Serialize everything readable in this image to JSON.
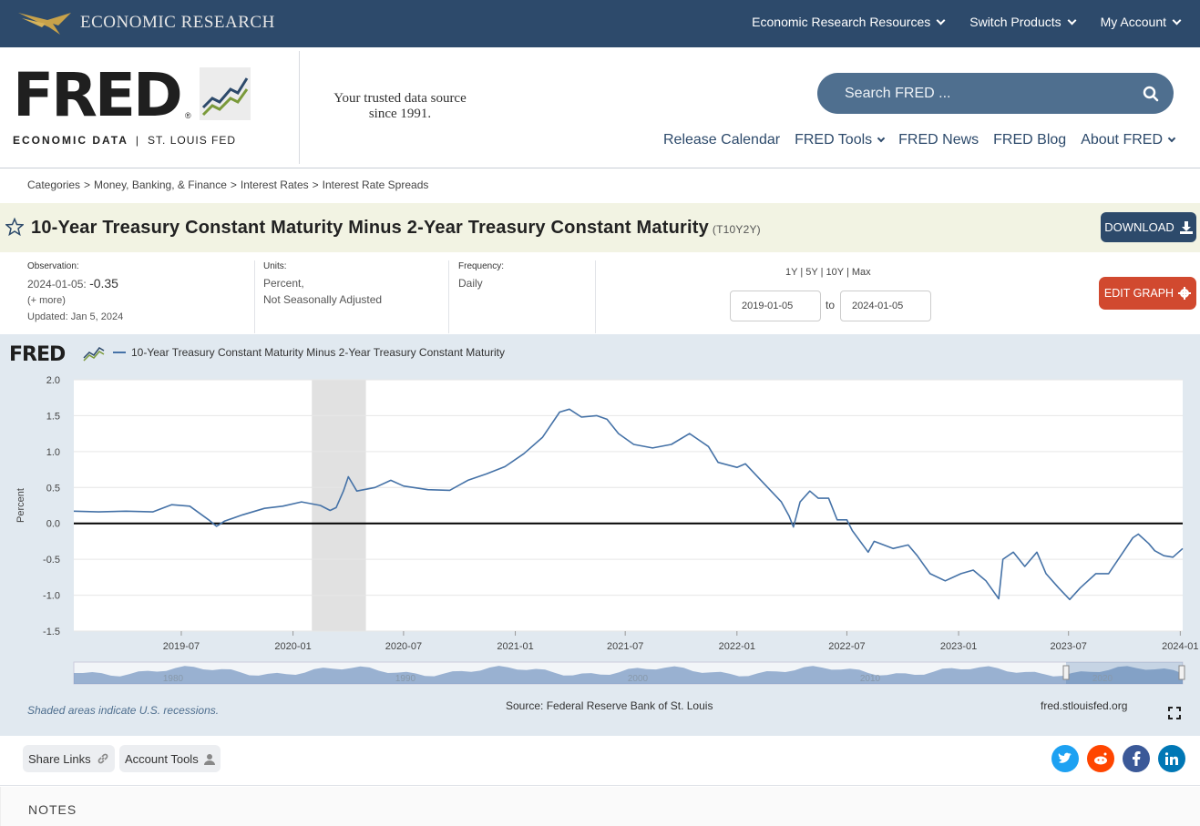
{
  "topbar": {
    "brand": "ECONOMIC RESEARCH",
    "nav": [
      "Economic Research Resources",
      "Switch Products",
      "My Account"
    ]
  },
  "header": {
    "logo": "FRED",
    "logo_sub_1": "ECONOMIC DATA",
    "logo_sub_sep": "|",
    "logo_sub_2": "ST. LOUIS FED",
    "tagline": "Your trusted data source since 1991.",
    "search_placeholder": "Search FRED ...",
    "nav": [
      {
        "label": "Release Calendar",
        "dropdown": false
      },
      {
        "label": "FRED Tools",
        "dropdown": true
      },
      {
        "label": "FRED News",
        "dropdown": false
      },
      {
        "label": "FRED Blog",
        "dropdown": false
      },
      {
        "label": "About FRED",
        "dropdown": true
      }
    ]
  },
  "breadcrumb": [
    "Categories",
    "Money, Banking, & Finance",
    "Interest Rates",
    "Interest Rate Spreads"
  ],
  "series": {
    "title": "10-Year Treasury Constant Maturity Minus 2-Year Treasury Constant Maturity",
    "id": "(T10Y2Y)",
    "download_label": "DOWNLOAD"
  },
  "meta": {
    "observation_label": "Observation:",
    "observation_date": "2024-01-05:",
    "observation_value": "-0.35",
    "more": "(+ more)",
    "updated": "Updated: Jan 5, 2024",
    "units_label": "Units:",
    "units_1": "Percent,",
    "units_2": "Not Seasonally Adjusted",
    "frequency_label": "Frequency:",
    "frequency": "Daily"
  },
  "range": {
    "options": [
      "1Y",
      "5Y",
      "10Y",
      "Max"
    ],
    "separator": "|",
    "start": "2019-01-05",
    "end": "2024-01-05",
    "to_label": "to",
    "edit_label": "EDIT GRAPH"
  },
  "chart_data": {
    "type": "line",
    "legend": "10-Year Treasury Constant Maturity Minus 2-Year Treasury Constant Maturity",
    "ylabel": "Percent",
    "ylim": [
      -1.5,
      2.0
    ],
    "yticks": [
      "2.0",
      "1.5",
      "1.0",
      "0.5",
      "0.0",
      "-0.5",
      "-1.0",
      "-1.5"
    ],
    "xticks": [
      "2019-07",
      "2020-01",
      "2020-07",
      "2021-01",
      "2021-07",
      "2022-01",
      "2022-07",
      "2023-01",
      "2023-07",
      "2024-01"
    ],
    "xlim": [
      "2019-01-05",
      "2024-01-05"
    ],
    "recession": [
      "2020-02-01",
      "2020-04-30"
    ],
    "series_color": "#4572a7",
    "navigator_labels": [
      "1980",
      "1990",
      "2000",
      "2010",
      "2020"
    ],
    "points": [
      [
        "2019-01-05",
        0.17
      ],
      [
        "2019-02-15",
        0.16
      ],
      [
        "2019-04-01",
        0.17
      ],
      [
        "2019-05-15",
        0.16
      ],
      [
        "2019-06-15",
        0.26
      ],
      [
        "2019-07-15",
        0.24
      ],
      [
        "2019-08-15",
        0.05
      ],
      [
        "2019-08-28",
        -0.04
      ],
      [
        "2019-09-10",
        0.03
      ],
      [
        "2019-10-10",
        0.12
      ],
      [
        "2019-11-15",
        0.21
      ],
      [
        "2019-12-15",
        0.24
      ],
      [
        "2020-01-15",
        0.3
      ],
      [
        "2020-02-15",
        0.25
      ],
      [
        "2020-03-02",
        0.18
      ],
      [
        "2020-03-12",
        0.22
      ],
      [
        "2020-03-24",
        0.45
      ],
      [
        "2020-04-01",
        0.65
      ],
      [
        "2020-04-15",
        0.45
      ],
      [
        "2020-05-15",
        0.5
      ],
      [
        "2020-06-10",
        0.6
      ],
      [
        "2020-07-01",
        0.52
      ],
      [
        "2020-08-10",
        0.47
      ],
      [
        "2020-09-15",
        0.46
      ],
      [
        "2020-10-15",
        0.6
      ],
      [
        "2020-11-15",
        0.69
      ],
      [
        "2020-12-15",
        0.79
      ],
      [
        "2021-01-15",
        0.97
      ],
      [
        "2021-02-15",
        1.2
      ],
      [
        "2021-03-15",
        1.55
      ],
      [
        "2021-03-31",
        1.59
      ],
      [
        "2021-04-20",
        1.48
      ],
      [
        "2021-05-15",
        1.5
      ],
      [
        "2021-06-01",
        1.45
      ],
      [
        "2021-06-20",
        1.25
      ],
      [
        "2021-07-15",
        1.1
      ],
      [
        "2021-08-15",
        1.05
      ],
      [
        "2021-09-15",
        1.1
      ],
      [
        "2021-10-15",
        1.25
      ],
      [
        "2021-11-15",
        1.07
      ],
      [
        "2021-12-01",
        0.85
      ],
      [
        "2022-01-01",
        0.78
      ],
      [
        "2022-01-15",
        0.83
      ],
      [
        "2022-02-15",
        0.55
      ],
      [
        "2022-03-15",
        0.3
      ],
      [
        "2022-03-28",
        0.1
      ],
      [
        "2022-04-04",
        -0.05
      ],
      [
        "2022-04-15",
        0.3
      ],
      [
        "2022-05-01",
        0.45
      ],
      [
        "2022-05-15",
        0.35
      ],
      [
        "2022-06-01",
        0.35
      ],
      [
        "2022-06-15",
        0.05
      ],
      [
        "2022-07-01",
        0.05
      ],
      [
        "2022-07-10",
        -0.1
      ],
      [
        "2022-08-05",
        -0.4
      ],
      [
        "2022-08-15",
        -0.25
      ],
      [
        "2022-09-15",
        -0.35
      ],
      [
        "2022-10-10",
        -0.3
      ],
      [
        "2022-10-25",
        -0.45
      ],
      [
        "2022-11-15",
        -0.7
      ],
      [
        "2022-12-10",
        -0.8
      ],
      [
        "2023-01-05",
        -0.7
      ],
      [
        "2023-01-25",
        -0.65
      ],
      [
        "2023-02-15",
        -0.8
      ],
      [
        "2023-03-08",
        -1.05
      ],
      [
        "2023-03-15",
        -0.5
      ],
      [
        "2023-04-01",
        -0.4
      ],
      [
        "2023-04-20",
        -0.6
      ],
      [
        "2023-05-10",
        -0.4
      ],
      [
        "2023-05-25",
        -0.7
      ],
      [
        "2023-06-15",
        -0.9
      ],
      [
        "2023-07-03",
        -1.06
      ],
      [
        "2023-07-20",
        -0.9
      ],
      [
        "2023-08-15",
        -0.7
      ],
      [
        "2023-09-05",
        -0.7
      ],
      [
        "2023-09-25",
        -0.45
      ],
      [
        "2023-10-15",
        -0.2
      ],
      [
        "2023-10-24",
        -0.15
      ],
      [
        "2023-11-10",
        -0.28
      ],
      [
        "2023-11-20",
        -0.38
      ],
      [
        "2023-12-05",
        -0.45
      ],
      [
        "2023-12-20",
        -0.47
      ],
      [
        "2024-01-05",
        -0.35
      ]
    ]
  },
  "footer": {
    "recession_note": "Shaded areas indicate U.S. recessions.",
    "source": "Source: Federal Reserve Bank of St. Louis",
    "site": "fred.stlouisfed.org"
  },
  "actions": {
    "share": "Share Links",
    "account": "Account Tools",
    "social": [
      {
        "name": "twitter",
        "color": "#1da1f2"
      },
      {
        "name": "reddit",
        "color": "#ff4500"
      },
      {
        "name": "facebook",
        "color": "#3b5998"
      },
      {
        "name": "linkedin",
        "color": "#0077b5"
      }
    ]
  },
  "notes": {
    "label": "NOTES"
  }
}
